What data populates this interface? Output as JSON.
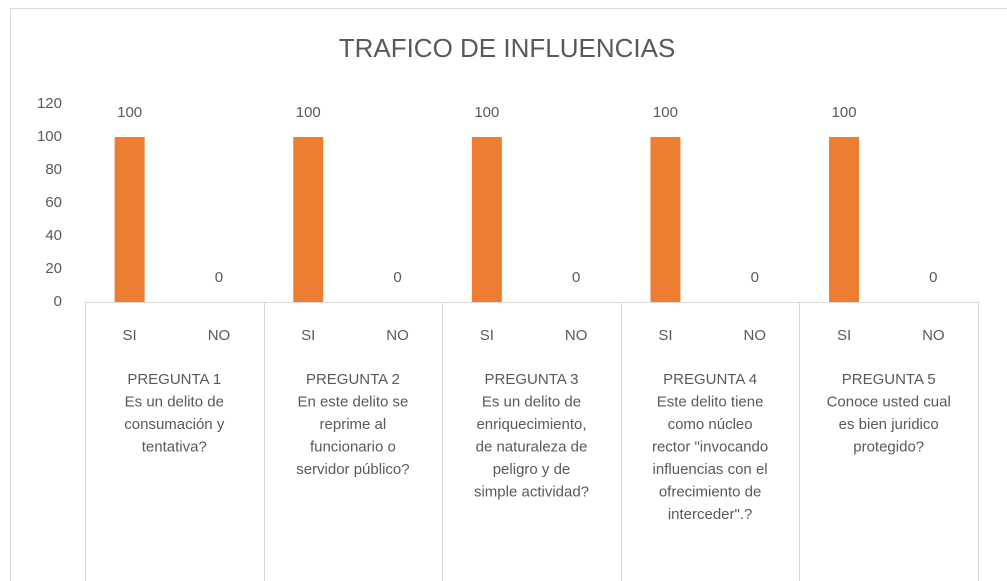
{
  "chart_data": {
    "type": "bar",
    "title": "TRAFICO DE INFLUENCIAS",
    "categories": [
      "SI",
      "NO",
      "SI",
      "NO",
      "SI",
      "NO",
      "SI",
      "NO",
      "SI",
      "NO"
    ],
    "groups": [
      [
        "PREGUNTA 1",
        "Es un delito de",
        "consumación y",
        "tentativa?"
      ],
      [
        "PREGUNTA 2",
        "En este delito se",
        "reprime al",
        "funcionario o",
        "servidor público?"
      ],
      [
        "PREGUNTA 3",
        "Es un delito de",
        "enriquecimiento,",
        "de naturaleza de",
        "peligro y de",
        "simple actividad?"
      ],
      [
        "PREGUNTA 4",
        "Este delito tiene",
        "como núcleo",
        "rector \"invocando",
        "influencias con el",
        "ofrecimiento de",
        "interceder\".?"
      ],
      [
        "PREGUNTA 5",
        "Conoce usted cual",
        "es bien juridico",
        "protegido?"
      ]
    ],
    "values": [
      100,
      0,
      100,
      0,
      100,
      0,
      100,
      0,
      100,
      0
    ],
    "color": "#ed7d31",
    "ylim": [
      0,
      120
    ],
    "yticks": [
      0,
      20,
      40,
      60,
      80,
      100,
      120
    ],
    "grid": false
  }
}
